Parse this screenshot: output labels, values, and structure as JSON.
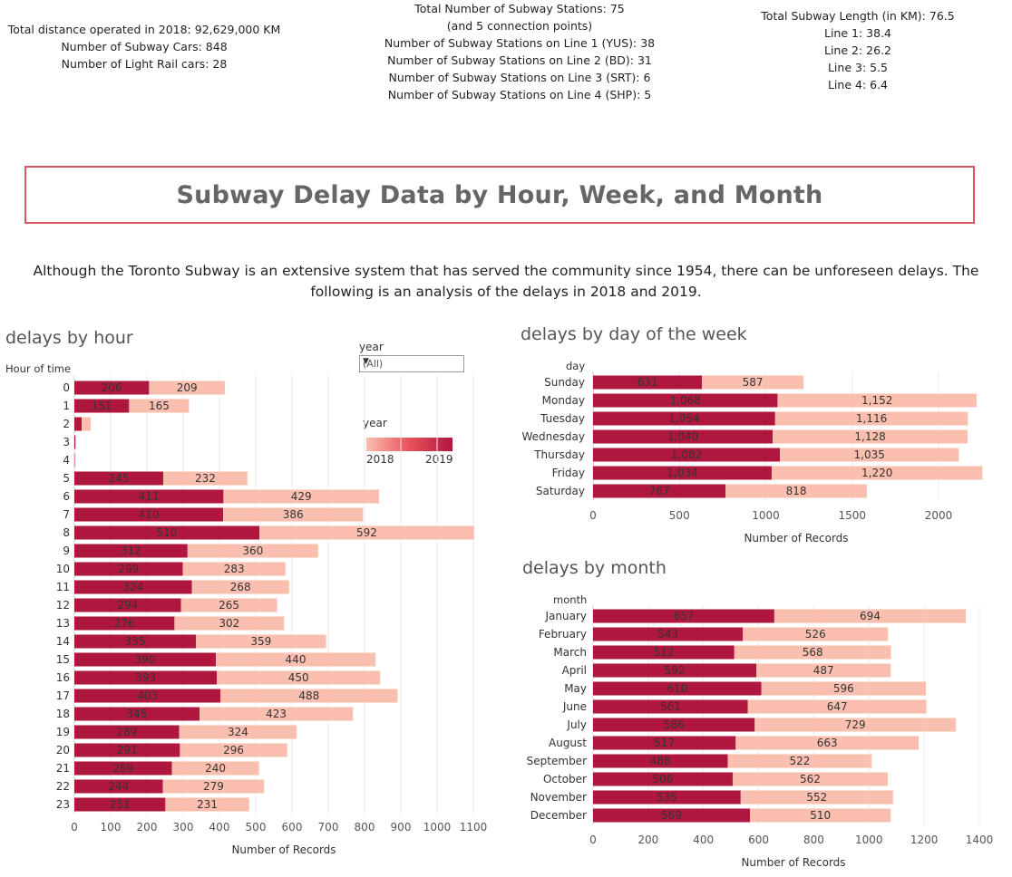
{
  "stats": {
    "left": [
      "Total distance operated in 2018: 92,629,000 KM",
      "Number of Subway Cars: 848",
      "Number of Light Rail cars: 28"
    ],
    "center": [
      "Total Number of Subway Stations: 75",
      "(and 5 connection points)",
      "Number of Subway Stations on Line 1 (YUS): 38",
      "Number of Subway Stations on Line 2 (BD): 31",
      "Number of Subway Stations on Line 3 (SRT): 6",
      "Number of Subway Stations on Line 4 (SHP): 5"
    ],
    "right": [
      "Total Subway Length (in KM): 76.5",
      "Line 1: 38.4",
      "Line 2: 26.2",
      "Line 3: 5.5",
      "Line 4: 6.4"
    ]
  },
  "title": "Subway Delay Data by Hour, Week, and Month",
  "intro": "Although the Toronto Subway is an extensive system that has served the community since 1954, there can be unforeseen delays. The following is an analysis of the delays in 2018 and 2019.",
  "filter": {
    "label": "year",
    "value": "(All)"
  },
  "legend": {
    "title": "year",
    "min_label": "2018",
    "max_label": "2019"
  },
  "colors": {
    "dark": "#b0173f",
    "light": "#fbbfb0",
    "border": "#d9595b"
  },
  "chart_data": [
    {
      "type": "bar",
      "orientation": "horizontal",
      "stacked": true,
      "title": "delays by hour",
      "row_header": "Hour of time",
      "xlabel": "Number of Records",
      "xlim": [
        0,
        1100
      ],
      "xticks": [
        0,
        100,
        200,
        300,
        400,
        500,
        600,
        700,
        800,
        900,
        1000,
        1100
      ],
      "categories": [
        "0",
        "1",
        "2",
        "3",
        "4",
        "5",
        "6",
        "7",
        "8",
        "9",
        "10",
        "11",
        "12",
        "13",
        "14",
        "15",
        "16",
        "17",
        "18",
        "19",
        "20",
        "21",
        "22",
        "23"
      ],
      "series": [
        {
          "values": [
            206,
            151,
            20,
            3,
            1,
            245,
            411,
            410,
            510,
            312,
            299,
            324,
            294,
            276,
            335,
            390,
            393,
            403,
            345,
            289,
            291,
            269,
            244,
            251
          ],
          "labels": [
            "206",
            "151",
            "",
            "",
            "",
            "245",
            "411",
            "410",
            "510",
            "312",
            "299",
            "324",
            "294",
            "276",
            "335",
            "390",
            "393",
            "403",
            "345",
            "289",
            "291",
            "269",
            "244",
            "251"
          ]
        },
        {
          "values": [
            209,
            165,
            25,
            0,
            2,
            232,
            429,
            386,
            592,
            360,
            283,
            268,
            265,
            302,
            359,
            440,
            450,
            488,
            423,
            324,
            296,
            240,
            279,
            231
          ],
          "labels": [
            "209",
            "165",
            "",
            "",
            "",
            "232",
            "429",
            "386",
            "592",
            "360",
            "283",
            "268",
            "265",
            "302",
            "359",
            "440",
            "450",
            "488",
            "423",
            "324",
            "296",
            "240",
            "279",
            "231"
          ]
        }
      ],
      "grid": true
    },
    {
      "type": "bar",
      "orientation": "horizontal",
      "stacked": true,
      "title": "delays by day of the week",
      "row_header": "day",
      "xlabel": "Number of Records",
      "xlim": [
        0,
        2300
      ],
      "xticks": [
        0,
        500,
        1000,
        1500,
        2000
      ],
      "categories": [
        "Sunday",
        "Monday",
        "Tuesday",
        "Wednesday",
        "Thursday",
        "Friday",
        "Saturday"
      ],
      "series": [
        {
          "values": [
            631,
            1068,
            1054,
            1040,
            1082,
            1034,
            767
          ],
          "labels": [
            "631",
            "1,068",
            "1,054",
            "1,040",
            "1,082",
            "1,034",
            "767"
          ]
        },
        {
          "values": [
            587,
            1152,
            1116,
            1128,
            1035,
            1220,
            818
          ],
          "labels": [
            "587",
            "1,152",
            "1,116",
            "1,128",
            "1,035",
            "1,220",
            "818"
          ]
        }
      ],
      "grid": true
    },
    {
      "type": "bar",
      "orientation": "horizontal",
      "stacked": true,
      "title": "delays by month",
      "row_header": "month",
      "xlabel": "Number of Records",
      "xlim": [
        0,
        1400
      ],
      "xticks": [
        0,
        200,
        400,
        600,
        800,
        1000,
        1200,
        1400
      ],
      "categories": [
        "January",
        "February",
        "March",
        "April",
        "May",
        "June",
        "July",
        "August",
        "September",
        "October",
        "November",
        "December"
      ],
      "series": [
        {
          "values": [
            657,
            543,
            512,
            592,
            610,
            561,
            586,
            517,
            488,
            506,
            535,
            569
          ],
          "labels": [
            "657",
            "543",
            "512",
            "592",
            "610",
            "561",
            "586",
            "517",
            "488",
            "506",
            "535",
            "569"
          ]
        },
        {
          "values": [
            694,
            526,
            568,
            487,
            596,
            647,
            729,
            663,
            522,
            562,
            552,
            510
          ],
          "labels": [
            "694",
            "526",
            "568",
            "487",
            "596",
            "647",
            "729",
            "663",
            "522",
            "562",
            "552",
            "510"
          ]
        }
      ],
      "grid": true
    }
  ]
}
